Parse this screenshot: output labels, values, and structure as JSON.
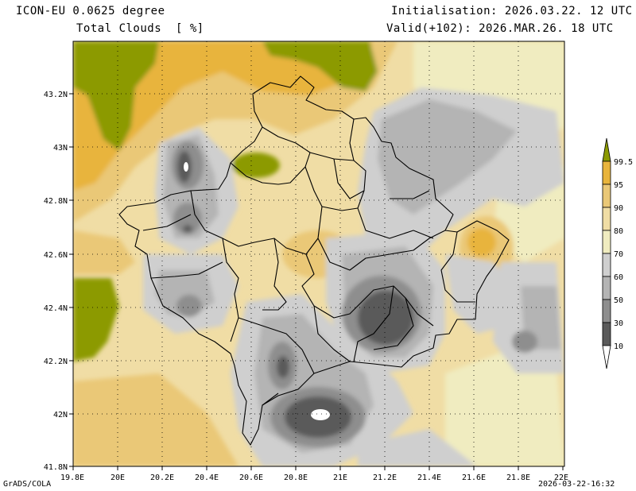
{
  "header": {
    "model": "ICON-EU 0.0625 degree",
    "field": "Total Clouds  [ %]",
    "init": "Initialisation: 2026.03.22. 12 UTC",
    "valid": "Valid(+102): 2026.MAR.26. 18 UTC"
  },
  "footer": {
    "credit": "GrADS/COLA",
    "timestamp": "2026-03-22-16:32"
  },
  "axes": {
    "lon_labels": [
      "19.8E",
      "20E",
      "20.2E",
      "20.4E",
      "20.6E",
      "20.8E",
      "21E",
      "21.2E",
      "21.4E",
      "21.6E",
      "21.8E",
      "22E"
    ],
    "lat_labels": [
      "43.2N",
      "43N",
      "42.8N",
      "42.6N",
      "42.4N",
      "42.2N",
      "42N",
      "41.8N"
    ]
  },
  "legend": {
    "labels": [
      "99.5",
      "95",
      "90",
      "80",
      "70",
      "60",
      "50",
      "30",
      "10"
    ],
    "colors": [
      "#8c9a00",
      "#e8b43c",
      "#eac877",
      "#f0dda5",
      "#f0ecc0",
      "#cfcfcf",
      "#b4b4b4",
      "#8e8e8e",
      "#5a5a5a"
    ]
  },
  "map_colors": {
    "olive": "#8c9a00",
    "orange": "#e8b43c",
    "tan": "#eac877",
    "light_tan": "#f0dda5",
    "cream": "#f0ecc0",
    "light_gray": "#cfcfcf",
    "gray": "#b4b4b4",
    "mid_gray": "#8e8e8e",
    "dark_gray": "#5a5a5a",
    "white": "#ffffff"
  }
}
